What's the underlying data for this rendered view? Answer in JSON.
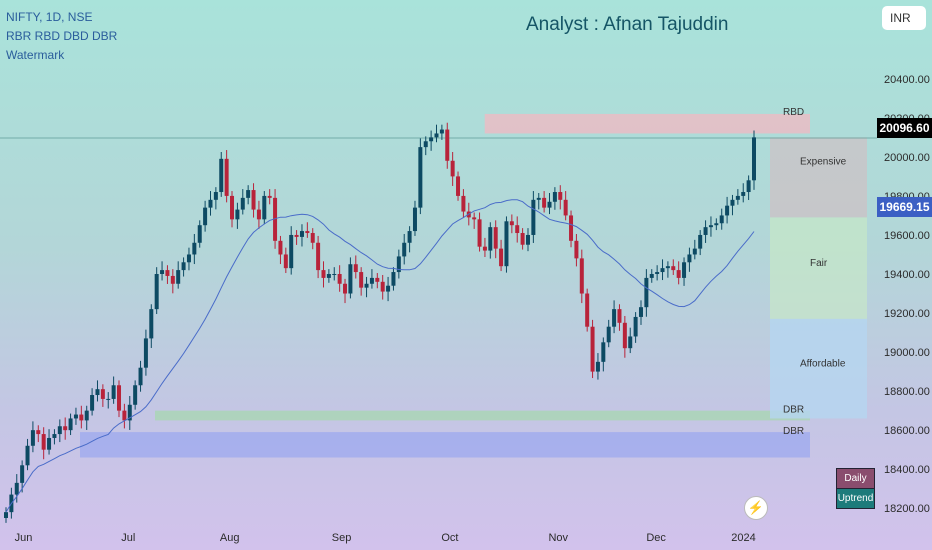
{
  "header": {
    "symbol_line": "NIFTY, 1D, NSE",
    "indicator_line": "RBR RBD DBD DBR",
    "watermark_line": "Watermark"
  },
  "analyst": "Analyst : Afnan Tajuddin",
  "currency": "INR",
  "last_price_tag": "20096.60",
  "ma_tag": "19669.15",
  "legend": {
    "daily": "Daily",
    "trend": "Uptrend"
  },
  "flash_icon": "lightning-icon",
  "colors": {
    "up": "#0d4a63",
    "down": "#b8233a",
    "ma": "#4a6cc9",
    "zone_top": "#f2b8c2",
    "zone_bottom": "#9aa6f0"
  },
  "chart_data": {
    "type": "candlestick",
    "ylim": [
      18150,
      20650
    ],
    "y_ticks": [
      "18200.00",
      "18400.00",
      "18600.00",
      "18800.00",
      "19000.00",
      "19200.00",
      "19400.00",
      "19600.00",
      "19800.00",
      "20000.00",
      "20200.00",
      "20400.00"
    ],
    "x_ticks": [
      "Jun",
      "Jul",
      "Aug",
      "Sep",
      "Oct",
      "Nov",
      "Dec",
      "2024"
    ],
    "x_tick_days": [
      5,
      35,
      64,
      96,
      127,
      158,
      186,
      211
    ],
    "total_days": 214,
    "closes": [
      [
        1,
        18180
      ],
      [
        2,
        18270
      ],
      [
        3,
        18330
      ],
      [
        4,
        18420
      ],
      [
        5,
        18520
      ],
      [
        6,
        18600
      ],
      [
        7,
        18580
      ],
      [
        8,
        18500
      ],
      [
        9,
        18560
      ],
      [
        10,
        18580
      ],
      [
        11,
        18620
      ],
      [
        12,
        18600
      ],
      [
        13,
        18660
      ],
      [
        14,
        18680
      ],
      [
        15,
        18650
      ],
      [
        16,
        18700
      ],
      [
        17,
        18780
      ],
      [
        18,
        18810
      ],
      [
        19,
        18760
      ],
      [
        20,
        18760
      ],
      [
        21,
        18830
      ],
      [
        22,
        18700
      ],
      [
        23,
        18650
      ],
      [
        24,
        18730
      ],
      [
        25,
        18830
      ],
      [
        26,
        18920
      ],
      [
        27,
        19070
      ],
      [
        28,
        19220
      ],
      [
        29,
        19400
      ],
      [
        30,
        19420
      ],
      [
        31,
        19390
      ],
      [
        32,
        19350
      ],
      [
        33,
        19420
      ],
      [
        34,
        19460
      ],
      [
        35,
        19500
      ],
      [
        36,
        19560
      ],
      [
        37,
        19650
      ],
      [
        38,
        19740
      ],
      [
        39,
        19780
      ],
      [
        40,
        19820
      ],
      [
        41,
        19990
      ],
      [
        42,
        19800
      ],
      [
        43,
        19680
      ],
      [
        44,
        19730
      ],
      [
        45,
        19790
      ],
      [
        46,
        19830
      ],
      [
        47,
        19730
      ],
      [
        48,
        19680
      ],
      [
        49,
        19800
      ],
      [
        50,
        19790
      ],
      [
        51,
        19570
      ],
      [
        52,
        19500
      ],
      [
        53,
        19430
      ],
      [
        54,
        19600
      ],
      [
        55,
        19590
      ],
      [
        56,
        19620
      ],
      [
        57,
        19610
      ],
      [
        58,
        19560
      ],
      [
        59,
        19420
      ],
      [
        60,
        19380
      ],
      [
        61,
        19400
      ],
      [
        62,
        19400
      ],
      [
        63,
        19350
      ],
      [
        64,
        19300
      ],
      [
        65,
        19450
      ],
      [
        66,
        19410
      ],
      [
        67,
        19330
      ],
      [
        68,
        19350
      ],
      [
        69,
        19380
      ],
      [
        70,
        19360
      ],
      [
        71,
        19310
      ],
      [
        72,
        19340
      ],
      [
        73,
        19410
      ],
      [
        74,
        19490
      ],
      [
        75,
        19560
      ],
      [
        76,
        19620
      ],
      [
        77,
        19740
      ],
      [
        78,
        20050
      ],
      [
        79,
        20080
      ],
      [
        80,
        20100
      ],
      [
        81,
        20120
      ],
      [
        82,
        20140
      ],
      [
        83,
        19980
      ],
      [
        84,
        19900
      ],
      [
        85,
        19800
      ],
      [
        86,
        19720
      ],
      [
        87,
        19690
      ],
      [
        88,
        19680
      ],
      [
        89,
        19540
      ],
      [
        90,
        19520
      ],
      [
        91,
        19640
      ],
      [
        92,
        19530
      ],
      [
        93,
        19440
      ],
      [
        94,
        19670
      ],
      [
        95,
        19650
      ],
      [
        96,
        19610
      ],
      [
        97,
        19550
      ],
      [
        98,
        19600
      ],
      [
        99,
        19780
      ],
      [
        100,
        19790
      ],
      [
        101,
        19740
      ],
      [
        102,
        19770
      ],
      [
        103,
        19820
      ],
      [
        104,
        19780
      ],
      [
        105,
        19700
      ],
      [
        106,
        19570
      ],
      [
        107,
        19480
      ],
      [
        108,
        19300
      ],
      [
        109,
        19130
      ],
      [
        110,
        18900
      ],
      [
        111,
        18950
      ],
      [
        112,
        19050
      ],
      [
        113,
        19130
      ],
      [
        114,
        19220
      ],
      [
        115,
        19150
      ],
      [
        116,
        19020
      ],
      [
        117,
        19080
      ],
      [
        118,
        19180
      ],
      [
        119,
        19230
      ],
      [
        120,
        19380
      ],
      [
        121,
        19400
      ],
      [
        122,
        19410
      ],
      [
        123,
        19430
      ],
      [
        124,
        19440
      ],
      [
        125,
        19420
      ],
      [
        126,
        19380
      ],
      [
        127,
        19460
      ],
      [
        128,
        19500
      ],
      [
        129,
        19530
      ],
      [
        130,
        19600
      ],
      [
        131,
        19640
      ],
      [
        132,
        19650
      ],
      [
        133,
        19660
      ],
      [
        134,
        19700
      ],
      [
        135,
        19750
      ],
      [
        136,
        19780
      ],
      [
        137,
        19800
      ],
      [
        138,
        19820
      ],
      [
        139,
        19880
      ],
      [
        140,
        20100
      ]
    ]
  }
}
